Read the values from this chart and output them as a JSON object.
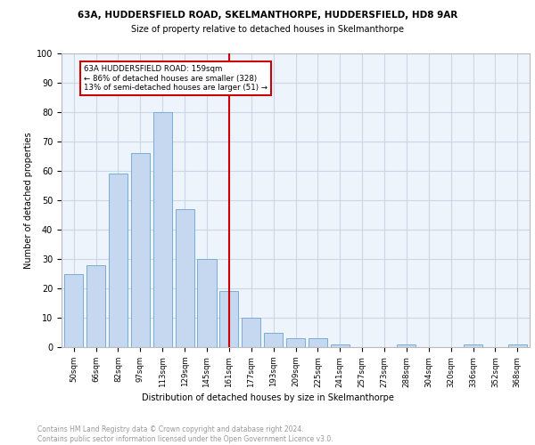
{
  "title_line1": "63A, HUDDERSFIELD ROAD, SKELMANTHORPE, HUDDERSFIELD, HD8 9AR",
  "title_line2": "Size of property relative to detached houses in Skelmanthorpe",
  "xlabel": "Distribution of detached houses by size in Skelmanthorpe",
  "ylabel": "Number of detached properties",
  "categories": [
    "50sqm",
    "66sqm",
    "82sqm",
    "97sqm",
    "113sqm",
    "129sqm",
    "145sqm",
    "161sqm",
    "177sqm",
    "193sqm",
    "209sqm",
    "225sqm",
    "241sqm",
    "257sqm",
    "273sqm",
    "288sqm",
    "304sqm",
    "320sqm",
    "336sqm",
    "352sqm",
    "368sqm"
  ],
  "values": [
    25,
    28,
    59,
    66,
    80,
    47,
    30,
    19,
    10,
    5,
    3,
    3,
    1,
    0,
    0,
    1,
    0,
    0,
    1,
    0,
    1
  ],
  "bar_color": "#c5d8f0",
  "bar_edge_color": "#7aadd4",
  "property_line_x": 7,
  "property_line_label": "63A HUDDERSFIELD ROAD: 159sqm",
  "annotation_line1": "← 86% of detached houses are smaller (328)",
  "annotation_line2": "13% of semi-detached houses are larger (51) →",
  "annotation_box_color": "#ffffff",
  "annotation_box_edge_color": "#cc0000",
  "vline_color": "#cc0000",
  "yticks": [
    0,
    10,
    20,
    30,
    40,
    50,
    60,
    70,
    80,
    90,
    100
  ],
  "ylim": [
    0,
    100
  ],
  "grid_color": "#c8d8e8",
  "background_color": "#eef4fb",
  "footer_line1": "Contains HM Land Registry data © Crown copyright and database right 2024.",
  "footer_line2": "Contains public sector information licensed under the Open Government Licence v3.0."
}
